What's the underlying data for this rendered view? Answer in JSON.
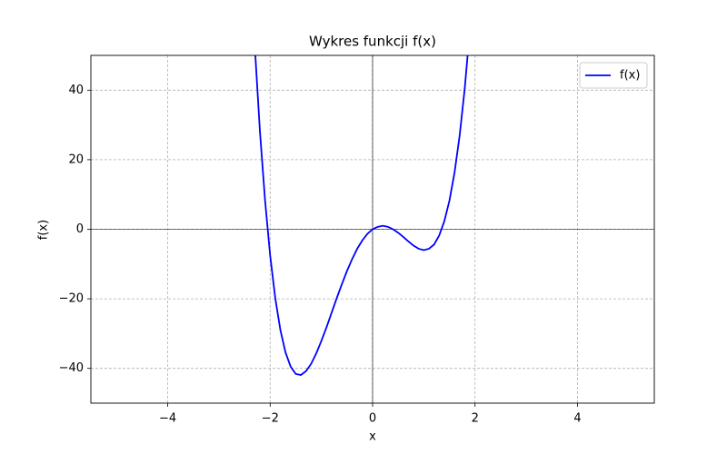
{
  "chart_data": {
    "type": "line",
    "title": "Wykres funkcji f(x)",
    "xlabel": "x",
    "ylabel": "f(x)",
    "x": [
      -2.3,
      -2.2,
      -2.1,
      -2.0,
      -1.9,
      -1.8,
      -1.7,
      -1.6,
      -1.5,
      -1.4,
      -1.3,
      -1.2,
      -1.1,
      -1.0,
      -0.9,
      -0.8,
      -0.7,
      -0.6,
      -0.5,
      -0.4,
      -0.3,
      -0.2,
      -0.1,
      0.0,
      0.1,
      0.2,
      0.3,
      0.4,
      0.5,
      0.6,
      0.7,
      0.8,
      0.9,
      1.0,
      1.1,
      1.2,
      1.3,
      1.4,
      1.5,
      1.6,
      1.7,
      1.8,
      1.9
    ],
    "series": [
      {
        "name": "f(x)",
        "color": "#0000ff",
        "values": [
          52.7,
          28.3,
          8.4,
          -7.5,
          -19.8,
          -29.0,
          -35.4,
          -39.5,
          -41.6,
          -41.9,
          -40.8,
          -38.7,
          -35.7,
          -32.1,
          -28.2,
          -24.0,
          -19.8,
          -15.8,
          -12.0,
          -8.6,
          -5.6,
          -3.2,
          -1.3,
          0.0,
          0.7,
          1.0,
          0.7,
          0.0,
          -1.0,
          -2.2,
          -3.5,
          -4.7,
          -5.6,
          -6.0,
          -5.6,
          -4.4,
          -1.8,
          2.3,
          8.2,
          16.3,
          27.0,
          40.6,
          57.6
        ]
      }
    ],
    "xlim": [
      -5.5,
      5.5
    ],
    "ylim": [
      -50,
      50
    ],
    "xticks": [
      {
        "value": -4,
        "label": "−4"
      },
      {
        "value": -2,
        "label": "−2"
      },
      0,
      2,
      4
    ],
    "yticks": [
      {
        "value": -40,
        "label": "−40"
      },
      {
        "value": -20,
        "label": "−20"
      },
      0,
      20,
      40
    ],
    "grid": true,
    "legend": "upper right"
  }
}
